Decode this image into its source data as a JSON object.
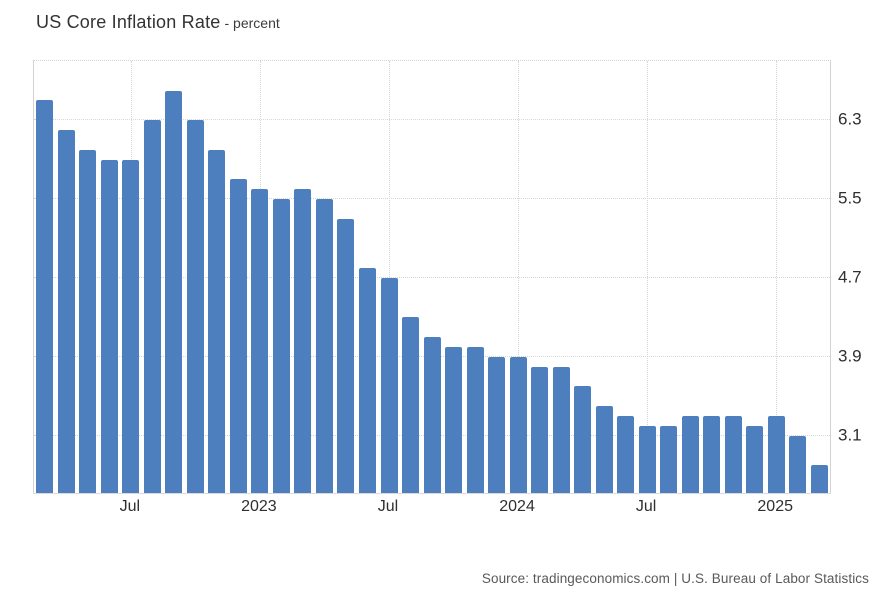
{
  "title": "US Core Inflation Rate",
  "subtitle": "- percent",
  "source": "Source: tradingeconomics.com | U.S. Bureau of Labor Statistics",
  "colors": {
    "bar": "#4d7fbe",
    "gridline": "#d6d6d6",
    "axis_text": "#2f2f2f",
    "title_text": "#333333",
    "source_text": "#595959",
    "background": "#ffffff"
  },
  "chart_data": {
    "type": "bar",
    "title": "US Core Inflation Rate",
    "subtitle_unit": "percent",
    "xlabel": "",
    "ylabel": "",
    "x": [
      "2022-03",
      "2022-04",
      "2022-05",
      "2022-06",
      "2022-07",
      "2022-08",
      "2022-09",
      "2022-10",
      "2022-11",
      "2022-12",
      "2023-01",
      "2023-02",
      "2023-03",
      "2023-04",
      "2023-05",
      "2023-06",
      "2023-07",
      "2023-08",
      "2023-09",
      "2023-10",
      "2023-11",
      "2023-12",
      "2024-01",
      "2024-02",
      "2024-03",
      "2024-04",
      "2024-05",
      "2024-06",
      "2024-07",
      "2024-08",
      "2024-09",
      "2024-10",
      "2024-11",
      "2024-12",
      "2025-01",
      "2025-02",
      "2025-03"
    ],
    "values": [
      6.5,
      6.2,
      6.0,
      5.9,
      5.9,
      6.3,
      6.6,
      6.3,
      6.0,
      5.7,
      5.6,
      5.5,
      5.6,
      5.5,
      5.3,
      4.8,
      4.7,
      4.3,
      4.1,
      4.0,
      4.0,
      3.9,
      3.9,
      3.8,
      3.8,
      3.6,
      3.4,
      3.3,
      3.2,
      3.2,
      3.3,
      3.3,
      3.3,
      3.2,
      3.3,
      3.1,
      2.8
    ],
    "y_ticks": [
      6.3,
      5.5,
      4.7,
      3.9,
      3.1
    ],
    "x_tick_labels": [
      {
        "label": "Jul",
        "index": 4
      },
      {
        "label": "2023",
        "index": 10
      },
      {
        "label": "Jul",
        "index": 16
      },
      {
        "label": "2024",
        "index": 22
      },
      {
        "label": "Jul",
        "index": 28
      },
      {
        "label": "2025",
        "index": 34
      }
    ],
    "ylim": [
      2.52,
      6.9
    ],
    "grid": true,
    "legend": false,
    "y_axis_side": "right"
  }
}
